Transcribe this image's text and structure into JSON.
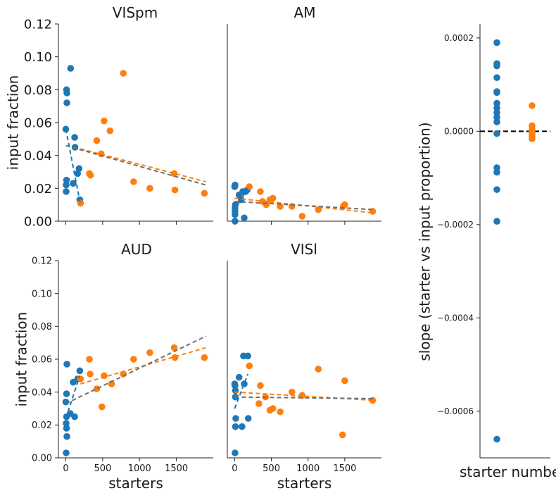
{
  "colors": {
    "blue": "#1f77b4",
    "orange": "#ff7f0e",
    "gray": "#6e6e6e",
    "black": "#000000"
  },
  "chart_data": [
    {
      "type": "scatter",
      "title": "VISpm",
      "xlabel": "",
      "ylabel": "input fraction",
      "xlim": [
        -100,
        2000
      ],
      "ylim": [
        0,
        0.12
      ],
      "xticks": [
        0,
        500,
        1000,
        1500
      ],
      "yticks": [
        "0.00",
        "0.02",
        "0.04",
        "0.06",
        "0.08",
        "0.10",
        "0.12"
      ],
      "show_xticklabels": false,
      "series": [
        {
          "color": "blue",
          "points": [
            [
              0,
              0.056
            ],
            [
              5,
              0.022
            ],
            [
              10,
              0.025
            ],
            [
              5,
              0.018
            ],
            [
              10,
              0.08
            ],
            [
              15,
              0.078
            ],
            [
              15,
              0.072
            ],
            [
              65,
              0.093
            ],
            [
              100,
              0.023
            ],
            [
              120,
              0.051
            ],
            [
              125,
              0.045
            ],
            [
              160,
              0.029
            ],
            [
              180,
              0.032
            ],
            [
              190,
              0.013
            ]
          ]
        },
        {
          "color": "orange",
          "points": [
            [
              200,
              0.011
            ],
            [
              320,
              0.029
            ],
            [
              335,
              0.028
            ],
            [
              420,
              0.049
            ],
            [
              480,
              0.041
            ],
            [
              520,
              0.061
            ],
            [
              600,
              0.055
            ],
            [
              780,
              0.09
            ],
            [
              920,
              0.024
            ],
            [
              1140,
              0.02
            ],
            [
              1470,
              0.029
            ],
            [
              1480,
              0.019
            ],
            [
              1880,
              0.017
            ]
          ]
        }
      ],
      "fits": [
        {
          "color": "blue",
          "x": [
            0,
            200
          ],
          "y": [
            0.056,
            0.01
          ]
        },
        {
          "color": "orange",
          "x": [
            200,
            1900
          ],
          "y": [
            0.044,
            0.024
          ]
        },
        {
          "color": "gray",
          "x": [
            0,
            1900
          ],
          "y": [
            0.046,
            0.022
          ]
        }
      ]
    },
    {
      "type": "scatter",
      "title": "AM",
      "xlabel": "",
      "ylabel": "",
      "xlim": [
        -100,
        2000
      ],
      "ylim": [
        0,
        0.12
      ],
      "xticks": [
        0,
        500,
        1000,
        1500
      ],
      "show_xticklabels": false,
      "show_yticklabels": false,
      "series": [
        {
          "color": "blue",
          "points": [
            [
              0,
              0.021
            ],
            [
              5,
              0.022
            ],
            [
              5,
              0.008
            ],
            [
              5,
              0.006
            ],
            [
              5,
              0.004
            ],
            [
              5,
              0.0
            ],
            [
              10,
              0.01
            ],
            [
              60,
              0.016
            ],
            [
              90,
              0.013
            ],
            [
              110,
              0.018
            ],
            [
              130,
              0.002
            ],
            [
              150,
              0.018
            ],
            [
              170,
              0.019
            ]
          ]
        },
        {
          "color": "orange",
          "points": [
            [
              200,
              0.021
            ],
            [
              350,
              0.018
            ],
            [
              380,
              0.012
            ],
            [
              430,
              0.01
            ],
            [
              480,
              0.013
            ],
            [
              520,
              0.014
            ],
            [
              620,
              0.009
            ],
            [
              780,
              0.009
            ],
            [
              920,
              0.003
            ],
            [
              1140,
              0.007
            ],
            [
              1480,
              0.009
            ],
            [
              1500,
              0.01
            ],
            [
              1880,
              0.006
            ]
          ]
        }
      ],
      "fits": [
        {
          "color": "blue",
          "x": [
            0,
            180
          ],
          "y": [
            0.007,
            0.02
          ]
        },
        {
          "color": "orange",
          "x": [
            0,
            1900
          ],
          "y": [
            0.014,
            0.005
          ]
        },
        {
          "color": "gray",
          "x": [
            0,
            1900
          ],
          "y": [
            0.012,
            0.007
          ]
        }
      ]
    },
    {
      "type": "scatter",
      "title": "AUD",
      "xlabel": "starters",
      "ylabel": "input fraction",
      "xlim": [
        -100,
        2000
      ],
      "ylim": [
        0,
        0.12
      ],
      "xticks": [
        0,
        500,
        1000,
        1500
      ],
      "yticks": [
        "0.00",
        "0.02",
        "0.04",
        "0.06",
        "0.08",
        "0.10",
        "0.12"
      ],
      "series": [
        {
          "color": "blue",
          "points": [
            [
              0,
              0.034
            ],
            [
              10,
              0.039
            ],
            [
              15,
              0.057
            ],
            [
              10,
              0.025
            ],
            [
              5,
              0.021
            ],
            [
              10,
              0.018
            ],
            [
              15,
              0.013
            ],
            [
              5,
              0.003
            ],
            [
              60,
              0.027
            ],
            [
              100,
              0.046
            ],
            [
              120,
              0.025
            ],
            [
              160,
              0.048
            ],
            [
              190,
              0.053
            ]
          ]
        },
        {
          "color": "orange",
          "points": [
            [
              200,
              0.048
            ],
            [
              320,
              0.06
            ],
            [
              330,
              0.051
            ],
            [
              420,
              0.042
            ],
            [
              490,
              0.031
            ],
            [
              520,
              0.05
            ],
            [
              620,
              0.045
            ],
            [
              780,
              0.051
            ],
            [
              920,
              0.06
            ],
            [
              1140,
              0.064
            ],
            [
              1470,
              0.067
            ],
            [
              1480,
              0.061
            ],
            [
              1880,
              0.061
            ]
          ]
        }
      ],
      "fits": [
        {
          "color": "blue",
          "x": [
            0,
            190
          ],
          "y": [
            0.024,
            0.05
          ]
        },
        {
          "color": "orange",
          "x": [
            200,
            1900
          ],
          "y": [
            0.045,
            0.067
          ]
        },
        {
          "color": "gray",
          "x": [
            0,
            1900
          ],
          "y": [
            0.033,
            0.074
          ]
        }
      ]
    },
    {
      "type": "scatter",
      "title": "VISl",
      "xlabel": "starters",
      "ylabel": "",
      "xlim": [
        -100,
        2000
      ],
      "ylim": [
        0,
        0.12
      ],
      "xticks": [
        0,
        500,
        1000,
        1500
      ],
      "show_yticklabels": false,
      "series": [
        {
          "color": "blue",
          "points": [
            [
              0,
              0.045
            ],
            [
              5,
              0.044
            ],
            [
              10,
              0.041
            ],
            [
              10,
              0.037
            ],
            [
              15,
              0.024
            ],
            [
              10,
              0.019
            ],
            [
              5,
              0.003
            ],
            [
              60,
              0.049
            ],
            [
              100,
              0.019
            ],
            [
              120,
              0.062
            ],
            [
              130,
              0.045
            ],
            [
              180,
              0.062
            ],
            [
              185,
              0.024
            ]
          ]
        },
        {
          "color": "orange",
          "points": [
            [
              200,
              0.056
            ],
            [
              330,
              0.033
            ],
            [
              350,
              0.044
            ],
            [
              420,
              0.037
            ],
            [
              480,
              0.029
            ],
            [
              520,
              0.03
            ],
            [
              620,
              0.028
            ],
            [
              780,
              0.04
            ],
            [
              920,
              0.038
            ],
            [
              1140,
              0.054
            ],
            [
              1470,
              0.014
            ],
            [
              1500,
              0.047
            ],
            [
              1880,
              0.035
            ]
          ]
        }
      ],
      "fits": [
        {
          "color": "blue",
          "x": [
            0,
            180
          ],
          "y": [
            0.03,
            0.051
          ]
        },
        {
          "color": "orange",
          "x": [
            0,
            1900
          ],
          "y": [
            0.04,
            0.035
          ]
        },
        {
          "color": "gray",
          "x": [
            0,
            1900
          ],
          "y": [
            0.037,
            0.036
          ]
        }
      ]
    },
    {
      "type": "scatter",
      "title": "",
      "xlabel": "starter numbe",
      "ylabel": "slope (starter vs input proportion)",
      "ylim": [
        -0.0007,
        0.00023
      ],
      "yticks": [
        "0.0002",
        "0.0000",
        "−0.0002",
        "−0.0004",
        "−0.0006"
      ],
      "hline": 0,
      "series": [
        {
          "color": "blue",
          "category_index": 0,
          "values": [
            0.00019,
            0.000145,
            0.00014,
            0.000115,
            8.5e-05,
            8.3e-05,
            6e-05,
            5e-05,
            4e-05,
            3e-05,
            2e-05,
            -5e-06,
            -7.8e-05,
            -8.8e-05,
            -0.000125,
            -0.000193,
            -0.00066
          ]
        },
        {
          "color": "orange",
          "category_index": 1,
          "values": [
            5.5e-05,
            1.2e-05,
            5e-06,
            0.0,
            -4e-06,
            -8e-06,
            -1.2e-05,
            -1.6e-05
          ]
        }
      ]
    }
  ]
}
